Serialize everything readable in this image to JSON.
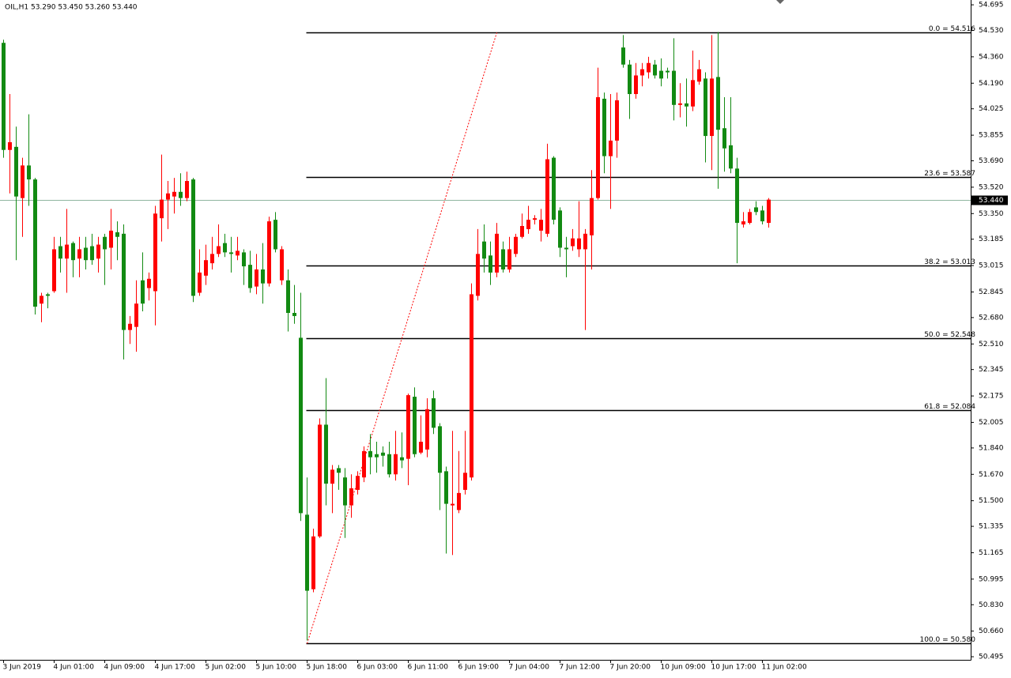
{
  "chart_data": {
    "type": "candlestick",
    "header": "OIL,H1  53.290 53.450 53.260 53.440",
    "up_color": "#ff0000",
    "down_color": "#128a12",
    "categories": [
      "3 Jun 2019",
      null,
      null,
      null,
      null,
      null,
      null,
      null,
      "4 Jun 01:00",
      null,
      null,
      null,
      null,
      null,
      null,
      null,
      "4 Jun 09:00",
      null,
      null,
      null,
      null,
      null,
      null,
      null,
      "4 Jun 17:00",
      null,
      null,
      null,
      null,
      null,
      null,
      null,
      "5 Jun 02:00",
      null,
      null,
      null,
      null,
      null,
      null,
      null,
      "5 Jun 10:00",
      null,
      null,
      null,
      null,
      null,
      null,
      null,
      "5 Jun 18:00",
      null,
      null,
      null,
      null,
      null,
      null,
      null,
      "6 Jun 03:00",
      null,
      null,
      null,
      null,
      null,
      null,
      null,
      "6 Jun 11:00",
      null,
      null,
      null,
      null,
      null,
      null,
      null,
      "6 Jun 19:00",
      null,
      null,
      null,
      null,
      null,
      null,
      null,
      "7 Jun 04:00",
      null,
      null,
      null,
      null,
      null,
      null,
      null,
      "7 Jun 12:00",
      null,
      null,
      null,
      null,
      null,
      null,
      null,
      "7 Jun 20:00",
      null,
      null,
      null,
      null,
      null,
      null,
      null,
      "10 Jun 09:00",
      null,
      null,
      null,
      null,
      null,
      null,
      null,
      "10 Jun 17:00",
      null,
      null,
      null,
      null,
      null,
      null,
      null,
      "11 Jun 02:00",
      null
    ],
    "open": [
      54.45,
      53.76,
      53.78,
      53.45,
      53.66,
      53.57,
      52.77,
      52.83,
      52.85,
      53.14,
      53.06,
      53.16,
      53.06,
      53.13,
      53.14,
      53.06,
      53.2,
      53.13,
      53.23,
      53.22,
      52.6,
      52.62,
      52.92,
      52.87,
      52.85,
      53.32,
      53.44,
      53.46,
      53.49,
      53.45,
      53.57,
      52.84,
      52.95,
      53.03,
      53.09,
      53.16,
      53.1,
      53.08,
      53.1,
      53.02,
      52.88,
      52.99,
      52.9,
      53.31,
      52.92,
      52.92,
      52.71,
      52.55,
      51.41,
      50.93,
      51.27,
      51.99,
      51.61,
      51.71,
      51.65,
      51.47,
      51.57,
      51.65,
      51.82,
      51.8,
      51.81,
      51.8,
      51.67,
      51.78,
      51.77,
      52.17,
      51.81,
      51.83,
      52.16,
      51.98,
      51.69,
      51.47,
      51.44,
      51.57,
      51.65,
      52.82,
      53.17,
      53.08,
      52.97,
      53.12,
      52.99,
      53.09,
      53.2,
      53.25,
      53.31,
      53.24,
      53.22,
      53.71,
      53.37,
      53.13,
      53.14,
      53.12,
      53.12,
      53.21,
      53.45,
      54.09,
      53.72,
      53.82,
      54.42,
      54.31,
      54.12,
      54.24,
      54.26,
      54.31,
      54.27,
      54.27,
      54.27,
      54.05,
      54.06,
      54.04,
      54.2,
      54.22,
      53.85,
      54.23,
      53.9,
      53.79,
      53.64,
      53.28,
      53.29,
      53.39,
      53.37,
      53.29
    ],
    "high": [
      54.47,
      54.12,
      53.91,
      53.71,
      53.99,
      53.58,
      52.84,
      52.84,
      53.2,
      53.2,
      53.38,
      53.17,
      53.2,
      53.2,
      53.22,
      53.2,
      53.22,
      53.38,
      53.3,
      53.28,
      52.69,
      52.92,
      53.1,
      52.97,
      53.4,
      53.73,
      53.56,
      53.58,
      53.61,
      53.62,
      53.58,
      53.12,
      53.15,
      53.2,
      53.28,
      53.22,
      53.2,
      53.2,
      53.12,
      53.11,
      53.09,
      53.16,
      53.33,
      53.36,
      53.14,
      52.99,
      52.89,
      52.84,
      51.65,
      51.32,
      52.03,
      52.29,
      51.73,
      51.73,
      51.71,
      51.67,
      51.69,
      51.85,
      51.93,
      51.88,
      51.85,
      51.88,
      51.95,
      51.94,
      52.19,
      52.23,
      52.05,
      52.16,
      52.21,
      52.0,
      51.72,
      51.95,
      51.82,
      51.95,
      52.9,
      53.25,
      53.28,
      53.17,
      53.29,
      53.17,
      53.2,
      53.22,
      53.35,
      53.4,
      53.34,
      53.38,
      53.8,
      53.72,
      53.39,
      53.2,
      53.25,
      53.43,
      53.25,
      53.63,
      54.29,
      54.13,
      54.12,
      54.13,
      54.5,
      54.34,
      54.32,
      54.32,
      54.36,
      54.34,
      54.35,
      54.29,
      54.48,
      54.19,
      54.22,
      54.4,
      54.34,
      54.26,
      54.5,
      54.52,
      54.1,
      54.1,
      53.71,
      53.36,
      53.38,
      53.43,
      53.4,
      53.45
    ],
    "low": [
      53.71,
      53.48,
      53.05,
      53.2,
      53.4,
      52.7,
      52.65,
      52.74,
      52.84,
      52.97,
      52.84,
      52.94,
      52.94,
      52.99,
      53.02,
      52.97,
      52.89,
      52.99,
      53.05,
      52.41,
      52.51,
      52.46,
      52.72,
      52.79,
      52.63,
      53.17,
      53.25,
      53.35,
      53.4,
      53.43,
      52.78,
      52.82,
      52.89,
      52.99,
      53.07,
      53.07,
      52.97,
      53.05,
      52.89,
      52.84,
      52.83,
      52.77,
      52.88,
      53.1,
      52.89,
      52.59,
      52.64,
      51.37,
      50.6,
      50.91,
      51.26,
      51.47,
      51.42,
      51.57,
      51.26,
      51.39,
      51.54,
      51.62,
      51.67,
      51.68,
      51.72,
      51.65,
      51.63,
      51.71,
      51.6,
      51.78,
      51.8,
      51.78,
      51.93,
      51.44,
      51.16,
      51.15,
      51.42,
      51.54,
      51.63,
      52.79,
      52.97,
      52.89,
      52.94,
      52.97,
      52.97,
      53.07,
      53.19,
      53.22,
      53.28,
      53.17,
      53.2,
      53.28,
      53.07,
      52.94,
      53.11,
      53.07,
      52.6,
      52.99,
      53.44,
      53.61,
      53.38,
      53.71,
      54.29,
      53.96,
      54.09,
      54.17,
      54.22,
      54.22,
      54.17,
      54.22,
      53.95,
      53.97,
      53.91,
      54.01,
      54.18,
      53.68,
      53.63,
      53.51,
      53.62,
      53.61,
      53.03,
      53.26,
      53.28,
      53.34,
      53.28,
      53.26
    ],
    "close": [
      53.76,
      53.81,
      53.46,
      53.66,
      53.57,
      52.75,
      52.82,
      52.82,
      53.12,
      53.06,
      53.15,
      53.05,
      53.12,
      53.05,
      53.05,
      53.15,
      53.12,
      53.24,
      53.2,
      52.6,
      52.64,
      52.77,
      52.77,
      52.93,
      53.35,
      53.44,
      53.48,
      53.49,
      53.45,
      53.56,
      52.82,
      52.97,
      53.05,
      53.09,
      53.14,
      53.1,
      53.09,
      53.11,
      53.01,
      52.87,
      52.99,
      52.9,
      53.3,
      53.12,
      53.12,
      52.71,
      52.69,
      51.42,
      50.92,
      51.27,
      51.99,
      51.61,
      51.7,
      51.68,
      51.47,
      51.58,
      51.66,
      51.82,
      51.78,
      51.78,
      51.79,
      51.67,
      51.8,
      51.76,
      52.18,
      51.8,
      51.88,
      52.09,
      51.97,
      51.68,
      51.48,
      51.48,
      51.55,
      51.68,
      52.83,
      53.09,
      53.06,
      52.97,
      53.22,
      52.99,
      53.12,
      53.2,
      53.27,
      53.31,
      53.32,
      53.31,
      53.7,
      53.31,
      53.13,
      53.12,
      53.19,
      53.19,
      53.22,
      53.45,
      54.1,
      53.72,
      53.82,
      54.08,
      54.31,
      54.12,
      54.24,
      54.28,
      54.32,
      54.24,
      54.22,
      54.26,
      54.05,
      54.06,
      54.04,
      54.21,
      54.28,
      53.85,
      54.22,
      53.89,
      53.77,
      53.64,
      53.29,
      53.3,
      53.36,
      53.36,
      53.3,
      53.44
    ],
    "ylim": [
      50.475,
      54.726
    ],
    "yticks": [
      54.695,
      {
        "value": 54.53,
        "label": "54.530"
      },
      {
        "value": 54.36,
        "label": "54.360"
      },
      {
        "value": 54.19,
        "label": "54.190"
      },
      54.025,
      53.855,
      {
        "value": 53.69,
        "label": "53.690"
      },
      {
        "value": 53.52,
        "label": "53.520"
      },
      {
        "value": 53.35,
        "label": "53.350"
      },
      53.185,
      53.015,
      52.845,
      {
        "value": 52.68,
        "label": "52.680"
      },
      {
        "value": 52.51,
        "label": "52.510"
      },
      52.345,
      52.175,
      52.005,
      {
        "value": 51.84,
        "label": "51.840"
      },
      {
        "value": 51.67,
        "label": "51.670"
      },
      {
        "value": 51.5,
        "label": "51.500"
      },
      51.335,
      51.165,
      50.995,
      {
        "value": 50.83,
        "label": "50.830"
      },
      {
        "value": 50.66,
        "label": "50.660"
      },
      50.495
    ],
    "current_price": {
      "value": 53.44,
      "label": "53.440"
    },
    "fib_levels": [
      {
        "value": 54.516,
        "label": "0.0 = 54.516"
      },
      {
        "value": 53.587,
        "label": "23.6 = 53.587"
      },
      {
        "value": 53.013,
        "label": "38.2 = 53.013"
      },
      {
        "value": 52.548,
        "label": "50.0 = 52.548"
      },
      {
        "value": 52.084,
        "label": "61.8 = 52.084"
      },
      {
        "value": 50.58,
        "label": "100.0 = 50.580"
      }
    ]
  }
}
